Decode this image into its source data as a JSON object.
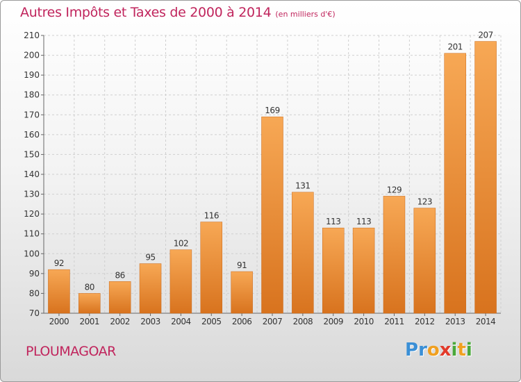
{
  "title": "Autres Impôts et Taxes de 2000 à 2014",
  "subtitle": "(en milliers d'€)",
  "commune": "PLOUMAGOAR",
  "logo": {
    "letters": [
      "P",
      "r",
      "o",
      "x",
      "i",
      "t",
      "i"
    ],
    "colors": [
      "#3a8fd6",
      "#3a8fd6",
      "#f0a020",
      "#e23a2a",
      "#4aa83a",
      "#f0a020",
      "#4aa83a"
    ]
  },
  "colors": {
    "bar_light": "#f7a855",
    "bar_dark": "#d8731e",
    "title": "#c0245c"
  },
  "chart_data": {
    "type": "bar",
    "categories": [
      "2000",
      "2001",
      "2002",
      "2003",
      "2004",
      "2005",
      "2006",
      "2007",
      "2008",
      "2009",
      "2010",
      "2011",
      "2012",
      "2013",
      "2014"
    ],
    "values": [
      92,
      80,
      86,
      95,
      102,
      116,
      91,
      169,
      131,
      113,
      113,
      129,
      123,
      201,
      207
    ],
    "ylim": [
      70,
      210
    ],
    "yticks": [
      70,
      80,
      90,
      100,
      110,
      120,
      130,
      140,
      150,
      160,
      170,
      180,
      190,
      200,
      210
    ],
    "grid": true
  }
}
